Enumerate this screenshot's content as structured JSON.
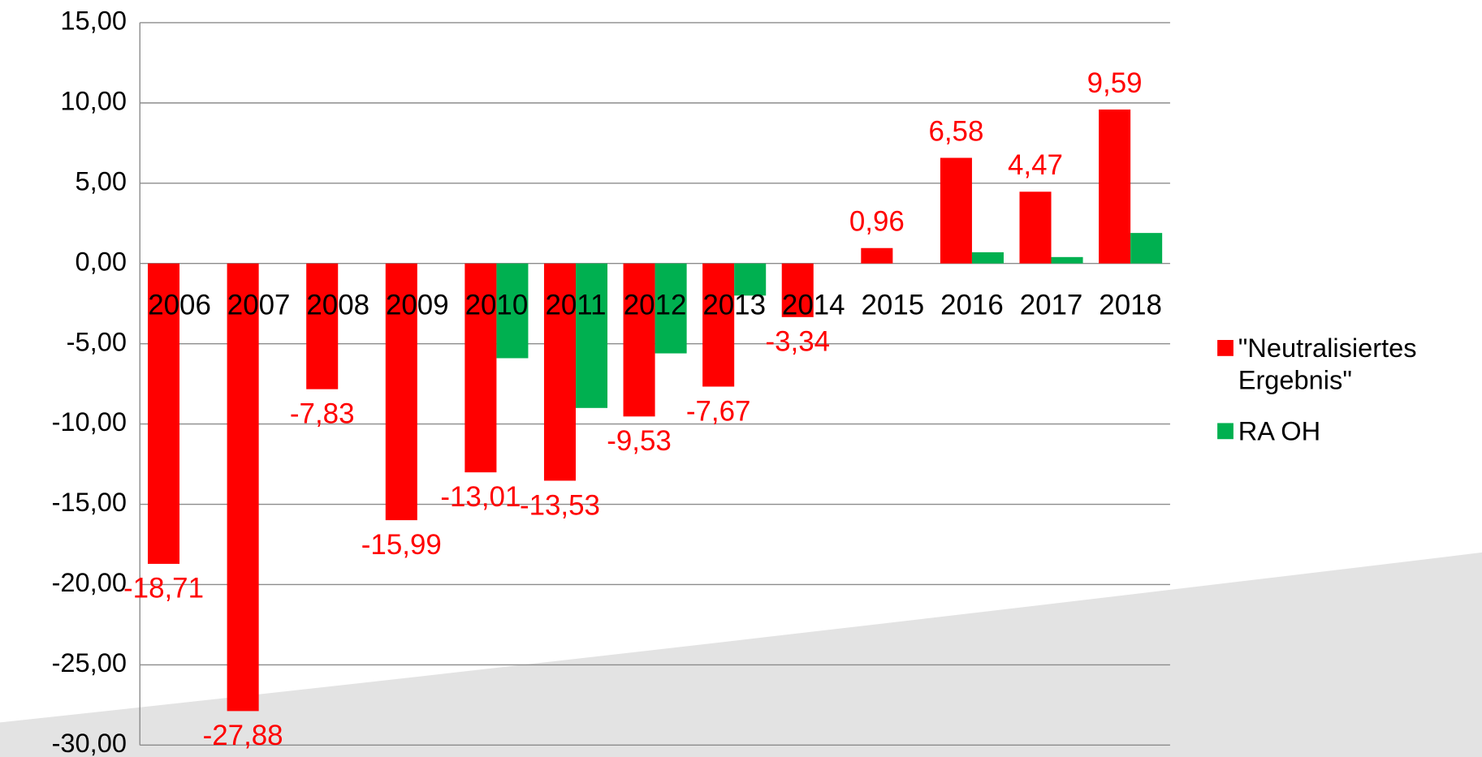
{
  "chart_data": {
    "type": "bar",
    "categories": [
      "2006",
      "2007",
      "2008",
      "2009",
      "2010",
      "2011",
      "2012",
      "2013",
      "2014",
      "2015",
      "2016",
      "2017",
      "2018"
    ],
    "series": [
      {
        "name": "\"Neutralisiertes Ergebnis\"",
        "color": "#ff0000",
        "values": [
          -18.71,
          -27.88,
          -7.83,
          -15.99,
          -13.01,
          -13.53,
          -9.53,
          -7.67,
          -3.34,
          0.96,
          6.58,
          4.47,
          9.59
        ],
        "value_labels": [
          "-18,71",
          "-27,88",
          "-7,83",
          "-15,99",
          "-13,01",
          "-13,53",
          "-9,53",
          "-7,67",
          "-3,34",
          "0,96",
          "6,58",
          "4,47",
          "9,59"
        ]
      },
      {
        "name": "RA OH",
        "color": "#00b050",
        "values": [
          null,
          null,
          null,
          null,
          -5.9,
          -9.0,
          -5.6,
          -2.0,
          null,
          null,
          0.7,
          0.4,
          1.9
        ]
      }
    ],
    "ylim": [
      -30,
      15
    ],
    "yticks": [
      {
        "value": -30,
        "label": "-30,00"
      },
      {
        "value": -25,
        "label": "-25,00"
      },
      {
        "value": -20,
        "label": "-20,00"
      },
      {
        "value": -15,
        "label": "-15,00"
      },
      {
        "value": -10,
        "label": "-10,00"
      },
      {
        "value": -5,
        "label": "-5,00"
      },
      {
        "value": 0,
        "label": "0,00"
      },
      {
        "value": 5,
        "label": "5,00"
      },
      {
        "value": 10,
        "label": "10,00"
      },
      {
        "value": 15,
        "label": "15,00"
      }
    ],
    "grid": true,
    "legend": "right"
  }
}
